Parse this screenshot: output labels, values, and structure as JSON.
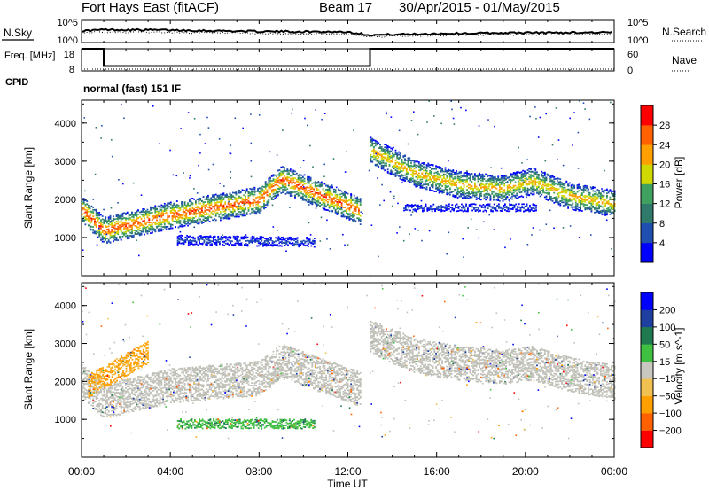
{
  "header": {
    "title": "Fort Hays East (fitACF)",
    "beam_label": "Beam 17",
    "date_range": "30/Apr/2015 - 01/May/2015"
  },
  "mode_label": "normal (fast) 151 IF",
  "time_axis": {
    "label": "Time UT",
    "ticks": [
      "00:00",
      "04:00",
      "08:00",
      "12:00",
      "16:00",
      "20:00",
      "00:00"
    ],
    "range_hours": [
      0,
      24
    ]
  },
  "colors": {
    "power": [
      "#0000ff",
      "#1f4fb0",
      "#2f7a6a",
      "#40a060",
      "#cfd800",
      "#ffa000",
      "#ff6000",
      "#ff0000"
    ],
    "velocity": [
      "#ff0000",
      "#ff6000",
      "#ffa000",
      "#f0c050",
      "#c8c8c0",
      "#40c040",
      "#207a50",
      "#1f3fa0",
      "#0000ff"
    ],
    "velocity_gray": "#c0c0b8"
  },
  "chart_data": [
    {
      "type": "line",
      "panel": "noise",
      "left_label": "N.Sky",
      "right_label": "N.Search",
      "left_ticks": [
        "10^5",
        "10^0"
      ],
      "right_ticks": [
        "10^5",
        "10^0"
      ],
      "ylim": [
        0,
        5
      ],
      "series": [
        {
          "name": "N.Sky",
          "x": [
            0,
            1,
            4,
            8,
            12,
            13,
            16,
            20,
            24
          ],
          "y": [
            2.6,
            2.9,
            2.8,
            2.5,
            2.4,
            1.7,
            2.0,
            2.2,
            2.3
          ]
        },
        {
          "name": "N.Search",
          "x": [
            0,
            1,
            4,
            8,
            12,
            13,
            16,
            20,
            24
          ],
          "y": [
            2.1,
            2.4,
            2.3,
            2.0,
            1.9,
            1.3,
            1.6,
            1.8,
            1.9
          ]
        }
      ]
    },
    {
      "type": "line",
      "panel": "frequency",
      "left_label": "Freq. [MHz]",
      "right_label": "Nave",
      "cpid_label": "CPID",
      "left_ticks": [
        "18",
        "8"
      ],
      "right_ticks": [
        "60",
        "0"
      ],
      "ylim": [
        8,
        18
      ],
      "series": [
        {
          "name": "Freq.",
          "x": [
            0,
            1,
            1,
            13,
            13,
            24
          ],
          "y": [
            18,
            18,
            10.2,
            10.2,
            18,
            18
          ]
        },
        {
          "name": "Nave",
          "x": [
            0,
            24
          ],
          "y": [
            8.8,
            8.8
          ]
        }
      ]
    },
    {
      "type": "heatmap",
      "panel": "power",
      "ylabel": "Slant Range [km]",
      "yticks": [
        1000,
        2000,
        3000,
        4000
      ],
      "ylim": [
        0,
        4600
      ],
      "colorbar": {
        "label": "Power [dB]",
        "ticks": [
          4,
          8,
          12,
          16,
          20,
          24,
          28
        ],
        "range": [
          0,
          32
        ]
      },
      "bands": [
        {
          "x": [
            0,
            1,
            4,
            8,
            9,
            12.6
          ],
          "y": [
            1750,
            1200,
            1600,
            2000,
            2550,
            1700
          ],
          "width": 700,
          "peak_db": 28
        },
        {
          "x": [
            4.3,
            10.5
          ],
          "y": [
            950,
            900
          ],
          "width": 250,
          "peak_db": 6
        },
        {
          "x": [
            13,
            15,
            17,
            19,
            20.3,
            22,
            24
          ],
          "y": [
            3300,
            2700,
            2400,
            2300,
            2500,
            2100,
            1900
          ],
          "width": 700,
          "peak_db": 22
        },
        {
          "x": [
            14.5,
            20.5
          ],
          "y": [
            1800,
            1800
          ],
          "width": 200,
          "peak_db": 6
        }
      ]
    },
    {
      "type": "heatmap",
      "panel": "velocity",
      "ylabel": "Slant Range [km]",
      "yticks": [
        1000,
        2000,
        3000,
        4000
      ],
      "ylim": [
        0,
        4600
      ],
      "colorbar": {
        "label": "Velocity [m s^-1]",
        "ticks": [
          -200,
          -100,
          -50,
          -15,
          15,
          50,
          100,
          200
        ],
        "tick_labels": [
          "−200",
          "−100",
          "−50",
          "−15",
          "15",
          "50",
          "100",
          "200"
        ]
      },
      "bands": [
        {
          "x": [
            0,
            1,
            4,
            8,
            9,
            12.6
          ],
          "y": [
            2000,
            1500,
            1900,
            2100,
            2550,
            1800
          ],
          "width": 900,
          "velocity": 0
        },
        {
          "x": [
            0.3,
            3
          ],
          "y": [
            1900,
            2800
          ],
          "width": 600,
          "velocity": -60
        },
        {
          "x": [
            4.3,
            10.5
          ],
          "y": [
            900,
            900
          ],
          "width": 250,
          "velocity": 40
        },
        {
          "x": [
            13,
            15,
            17,
            19,
            20.3,
            22,
            24
          ],
          "y": [
            3200,
            2700,
            2500,
            2400,
            2500,
            2200,
            2000
          ],
          "width": 900,
          "velocity": 0
        }
      ]
    }
  ]
}
